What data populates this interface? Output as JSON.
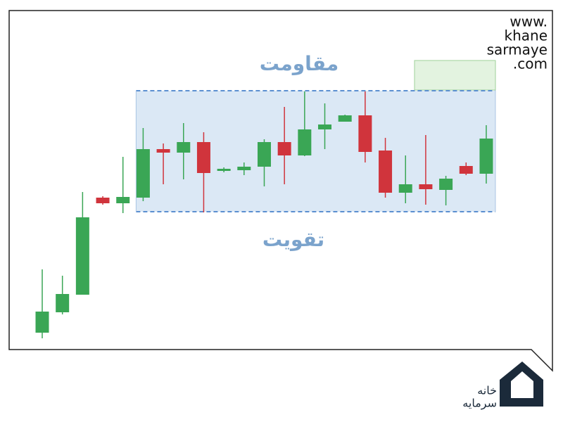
{
  "chart_data": {
    "type": "candlestick",
    "open": [
      27,
      56,
      81,
      219,
      211,
      219,
      288,
      283,
      298,
      257,
      258,
      263,
      298,
      279,
      316,
      327,
      336,
      286,
      226,
      238,
      230,
      264,
      253
    ],
    "high": [
      117,
      108,
      227,
      221,
      277,
      318,
      296,
      325,
      312,
      262,
      269,
      302,
      348,
      370,
      353,
      337,
      370,
      304,
      279,
      308,
      250,
      269,
      322
    ],
    "low": [
      19,
      53,
      81,
      209,
      197,
      214,
      238,
      245,
      198,
      255,
      251,
      235,
      238,
      278,
      288,
      327,
      269,
      219,
      211,
      209,
      208,
      251,
      239
    ],
    "close": [
      57,
      82,
      191,
      211,
      220,
      288,
      283,
      298,
      254,
      260,
      263,
      298,
      279,
      316,
      323,
      336,
      284,
      226,
      238,
      231,
      246,
      253,
      303
    ],
    "up_color": "#3aa655",
    "down_color": "#d0343c",
    "ylim": [
      0,
      400
    ],
    "zone": {
      "low": 199,
      "high": 371,
      "color": "#5b8fd0"
    },
    "resistance_label": "مقاومت",
    "support_label": "تقویت"
  },
  "logo": {
    "lines": [
      "www.",
      "khane",
      "sarmaye",
      ".com"
    ],
    "persian": [
      "خانه",
      "سرمایه"
    ]
  }
}
